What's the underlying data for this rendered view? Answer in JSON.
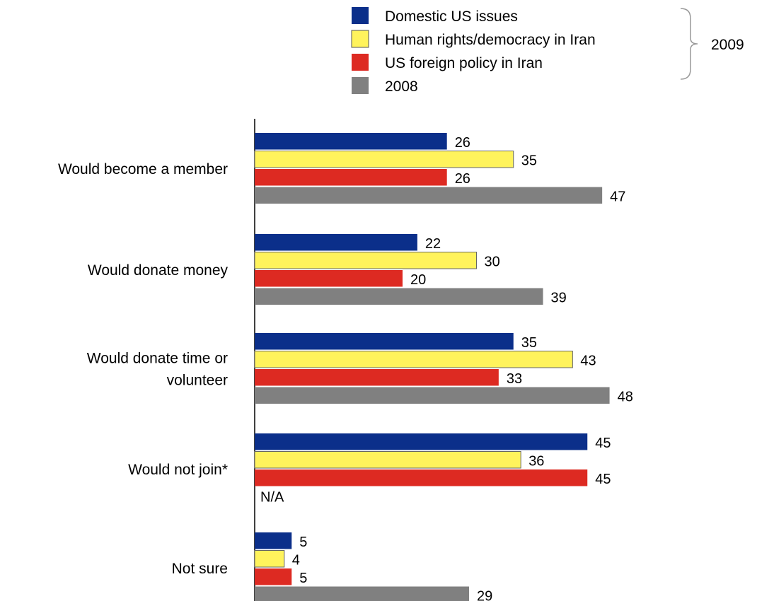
{
  "chart_data": {
    "type": "bar",
    "orientation": "horizontal",
    "categories": [
      [
        "Would become a member"
      ],
      [
        "Would donate money"
      ],
      [
        "Would donate time or",
        "volunteer"
      ],
      [
        "Would not join*"
      ],
      [
        "Not sure"
      ]
    ],
    "series": [
      {
        "name": "Domestic US issues",
        "color": "#0b2f8a",
        "values": [
          26,
          22,
          35,
          45,
          5
        ]
      },
      {
        "name": "Human rights/democracy in Iran",
        "color": "#fff35c",
        "values": [
          35,
          30,
          43,
          36,
          4
        ]
      },
      {
        "name": "US foreign policy in Iran",
        "color": "#dd2a22",
        "values": [
          26,
          20,
          33,
          45,
          5
        ]
      },
      {
        "name": "2008",
        "color": "#808080",
        "values": [
          47,
          39,
          48,
          null,
          29
        ]
      }
    ],
    "missing_label": "N/A",
    "legend_group_label": "2009",
    "legend_group_series": [
      0,
      1,
      2
    ],
    "legend_placement": "top-right",
    "title": "",
    "xlabel": "",
    "ylabel": "",
    "xlim": [
      0,
      50
    ],
    "grid": false
  }
}
